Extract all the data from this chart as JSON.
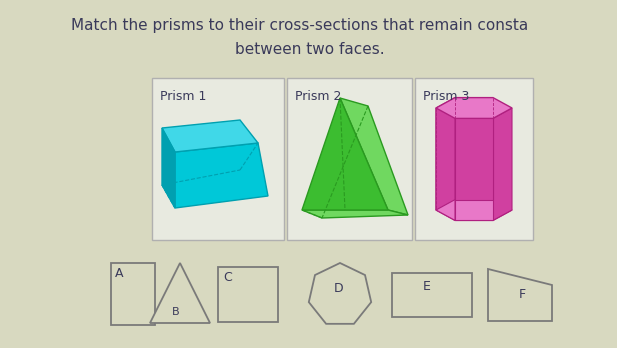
{
  "title_line1": "Match the prisms to their cross-sections that remain consta",
  "title_line2": "between two faces.",
  "bg_color": "#d8d9c0",
  "prism_labels": [
    "Prism 1",
    "Prism 2",
    "Prism 3"
  ],
  "cross_section_labels": [
    "A",
    "B",
    "C",
    "D",
    "E",
    "F"
  ],
  "text_color": "#3a3a5a",
  "box_edge_color": "#7a7a7a",
  "teal_dark": "#00a0b0",
  "teal_mid": "#00c8d8",
  "teal_light": "#40d8e8",
  "green_dark": "#2a9a20",
  "green_mid": "#3cbd30",
  "green_light": "#70d860",
  "pink_dark": "#b02080",
  "pink_mid": "#d040a0",
  "pink_light": "#e878c8"
}
